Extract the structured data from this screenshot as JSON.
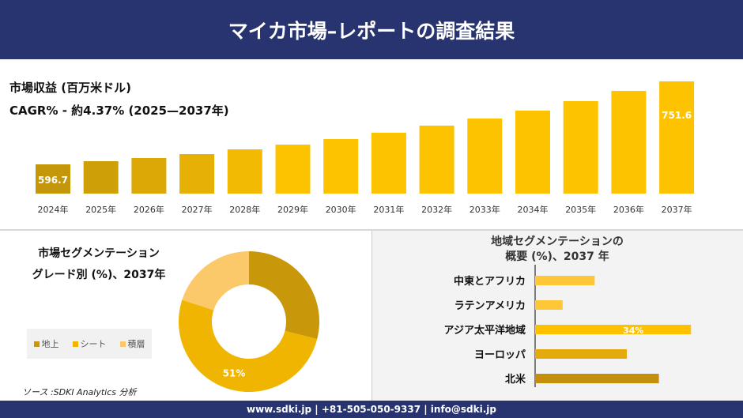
{
  "header": {
    "title": "マイカ市場–レポートの調査結果"
  },
  "revenue": {
    "line1": "市場収益 (百万米ドル)",
    "line2": "CAGR% - 約4.37% (2025—2037年)"
  },
  "donut_title": [
    "市場セグメンテーション",
    "グレード別 (%)、2037年"
  ],
  "region_title": [
    "地域セグメンテーションの",
    "概要 (%)、2037 年"
  ],
  "source": "ソース :SDKI Analytics 分析",
  "footer": "www.sdki.jp | +81-505-050-9337 | info@sdki.jp",
  "chart_data": [
    {
      "type": "bar",
      "categories": [
        "2024年",
        "2025年",
        "2026年",
        "2027年",
        "2028年",
        "2029年",
        "2030年",
        "2031年",
        "2032年",
        "2033年",
        "2034年",
        "2035年",
        "2036年",
        "2037年"
      ],
      "values": [
        596.7,
        602.6,
        608.5,
        615.8,
        624.7,
        633.5,
        643.9,
        655.7,
        669.0,
        682.2,
        697.0,
        714.7,
        733.8,
        751.6
      ],
      "data_labels": {
        "0": "596.7",
        "13": "751.6"
      },
      "colors": {
        "dark": "#c4960a",
        "light": "#fdc300"
      }
    },
    {
      "type": "pie",
      "subtype": "donut",
      "categories": [
        "地上",
        "シート",
        "積層"
      ],
      "values": [
        29,
        51,
        20
      ],
      "data_labels": {
        "1": "51%"
      },
      "colors": [
        "#c8970a",
        "#efb500",
        "#fcc96a"
      ],
      "legend": "left"
    },
    {
      "type": "bar",
      "orientation": "horizontal",
      "categories": [
        "中東とアフリカ",
        "ラテンアメリカ",
        "アジア太平洋地域",
        "ヨーロッパ",
        "北米"
      ],
      "values": [
        13,
        6,
        34,
        20,
        27
      ],
      "data_labels": {
        "2": "34%"
      },
      "colors": [
        "#fdc737",
        "#fdc737",
        "#fdc100",
        "#e3aa0c",
        "#c4900b"
      ]
    }
  ]
}
